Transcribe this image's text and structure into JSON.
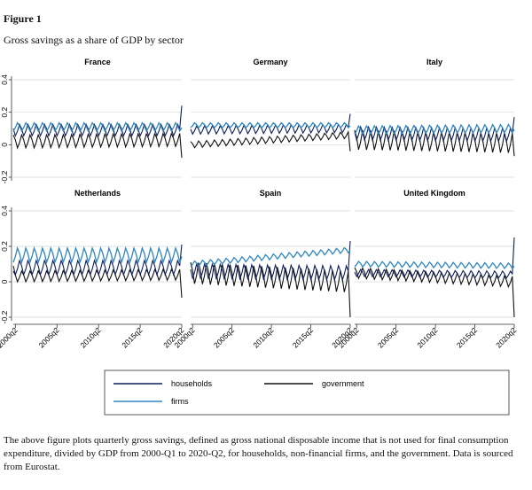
{
  "figure": {
    "title": "Figure 1",
    "subtitle": "Gross savings as a share of GDP by sector",
    "caption": "The above figure plots quarterly gross savings, defined as gross national disposable income that is not used for final consumption expenditure, divided by GDP from 2000-Q1 to 2020-Q2, for households, non-financial firms, and the government. Data is sourced from Eurostat."
  },
  "colors": {
    "households": "#0d1f5c",
    "government": "#111111",
    "firms": "#2f86c1",
    "grid": "#d9d9d9"
  },
  "chart_data": {
    "type": "line",
    "x_range": [
      "2000q1",
      "2020q2"
    ],
    "x_ticks": [
      "2000q2",
      "2005q2",
      "2010q2",
      "2015q2",
      "2020q2"
    ],
    "y_ticks": [
      "-0.2",
      "0",
      "0.2",
      "0.4"
    ],
    "ylim": [
      -0.2,
      0.4
    ],
    "grid": true,
    "legend_position": "bottom",
    "legend": [
      {
        "key": "households",
        "label": "households"
      },
      {
        "key": "government",
        "label": "government"
      },
      {
        "key": "firms",
        "label": "firms"
      }
    ],
    "panels": [
      {
        "name": "France",
        "households": {
          "level": [
            0.09,
            0.09
          ],
          "amp": 0.035
        },
        "firms": {
          "level": [
            0.11,
            0.11
          ],
          "amp": 0.025
        },
        "government": {
          "level": [
            0.02,
            0.03
          ],
          "amp": 0.04
        },
        "end_values": {
          "households": 0.24,
          "government": -0.08
        }
      },
      {
        "name": "Germany",
        "households": {
          "level": [
            0.09,
            0.1
          ],
          "amp": 0.025
        },
        "firms": {
          "level": [
            0.12,
            0.12
          ],
          "amp": 0.015
        },
        "government": {
          "level": [
            0.0,
            0.06
          ],
          "amp": 0.02
        },
        "end_values": {
          "households": 0.19,
          "government": -0.04
        }
      },
      {
        "name": "Italy",
        "households": {
          "level": [
            0.07,
            0.06
          ],
          "amp": 0.04
        },
        "firms": {
          "level": [
            0.09,
            0.1
          ],
          "amp": 0.025
        },
        "government": {
          "level": [
            0.03,
            0.01
          ],
          "amp": 0.06
        },
        "end_values": {
          "households": 0.17,
          "government": -0.07
        }
      },
      {
        "name": "Netherlands",
        "households": {
          "level": [
            0.08,
            0.08
          ],
          "amp": 0.04
        },
        "firms": {
          "level": [
            0.15,
            0.15
          ],
          "amp": 0.04
        },
        "government": {
          "level": [
            0.03,
            0.04
          ],
          "amp": 0.03
        },
        "end_values": {
          "households": 0.21,
          "government": -0.09
        }
      },
      {
        "name": "Spain",
        "households": {
          "level": [
            0.06,
            0.05
          ],
          "amp": 0.04
        },
        "firms": {
          "level": [
            0.1,
            0.18
          ],
          "amp": 0.015
        },
        "government": {
          "level": [
            0.05,
            0.0
          ],
          "amp": 0.06
        },
        "end_values": {
          "households": 0.23,
          "government": -0.2
        }
      },
      {
        "name": "United Kingdom",
        "households": {
          "level": [
            0.05,
            0.04
          ],
          "amp": 0.02
        },
        "firms": {
          "level": [
            0.1,
            0.09
          ],
          "amp": 0.015
        },
        "government": {
          "level": [
            0.05,
            0.0
          ],
          "amp": 0.03
        },
        "end_values": {
          "households": 0.25,
          "government": -0.2
        }
      }
    ]
  }
}
